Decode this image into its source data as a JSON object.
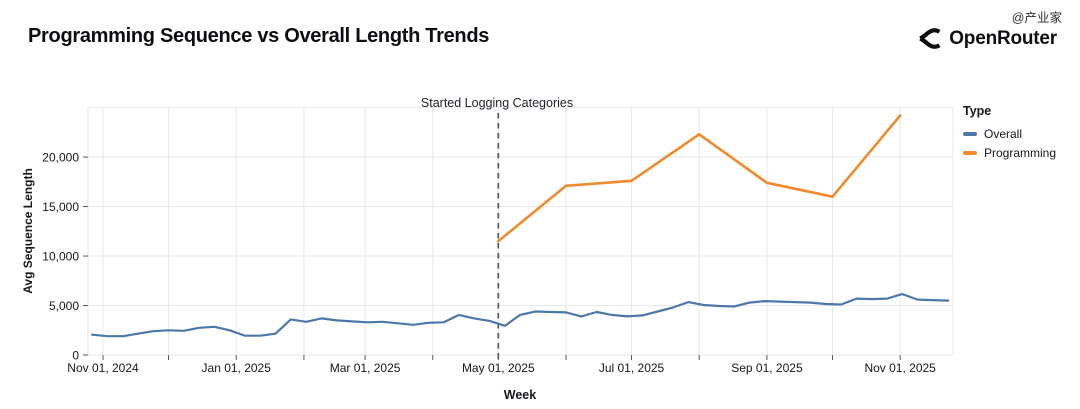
{
  "header": {
    "brand": "OpenRouter",
    "watermark": "@产业家"
  },
  "chart_data": {
    "type": "line",
    "title": "Programming Sequence vs Overall Length Trends",
    "xlabel": "Week",
    "ylabel": "Avg Sequence Length",
    "ylim": [
      0,
      25000
    ],
    "x_range_dates": [
      "2024-10-25",
      "2025-11-25"
    ],
    "grid": true,
    "annotation": {
      "label": "Started Logging Categories",
      "date": "2025-05-01",
      "style": "dashed-vertical-line",
      "color": "#55555e"
    },
    "legend": {
      "title": "Type",
      "position": "right",
      "entries": [
        {
          "name": "Overall",
          "color": "#4c78a8"
        },
        {
          "name": "Programming",
          "color": "#ef8a2e"
        }
      ]
    },
    "x_ticks": [
      {
        "label": "Nov 01, 2024",
        "date": "2024-11-01"
      },
      {
        "label": "Jan 01, 2025",
        "date": "2025-01-01"
      },
      {
        "label": "Mar 01, 2025",
        "date": "2025-03-01"
      },
      {
        "label": "May 01, 2025",
        "date": "2025-05-01"
      },
      {
        "label": "Jul 01, 2025",
        "date": "2025-07-01"
      },
      {
        "label": "Sep 01, 2025",
        "date": "2025-09-01"
      },
      {
        "label": "Nov 01, 2025",
        "date": "2025-11-01"
      }
    ],
    "y_ticks": [
      {
        "label": "0",
        "value": 0
      },
      {
        "label": "5,000",
        "value": 5000
      },
      {
        "label": "10,000",
        "value": 10000
      },
      {
        "label": "15,000",
        "value": 15000
      },
      {
        "label": "20,000",
        "value": 20000
      }
    ],
    "series": [
      {
        "name": "Overall",
        "color": "#4c78a8",
        "points": [
          [
            "2024-10-27",
            2050
          ],
          [
            "2024-11-03",
            1900
          ],
          [
            "2024-11-10",
            1900
          ],
          [
            "2024-11-17",
            2150
          ],
          [
            "2024-11-24",
            2400
          ],
          [
            "2024-12-01",
            2500
          ],
          [
            "2024-12-08",
            2450
          ],
          [
            "2024-12-15",
            2750
          ],
          [
            "2024-12-22",
            2850
          ],
          [
            "2024-12-29",
            2500
          ],
          [
            "2025-01-05",
            1950
          ],
          [
            "2025-01-12",
            1950
          ],
          [
            "2025-01-19",
            2150
          ],
          [
            "2025-01-26",
            3600
          ],
          [
            "2025-02-02",
            3350
          ],
          [
            "2025-02-09",
            3700
          ],
          [
            "2025-02-16",
            3500
          ],
          [
            "2025-02-23",
            3400
          ],
          [
            "2025-03-02",
            3300
          ],
          [
            "2025-03-09",
            3350
          ],
          [
            "2025-03-16",
            3200
          ],
          [
            "2025-03-23",
            3050
          ],
          [
            "2025-03-30",
            3250
          ],
          [
            "2025-04-06",
            3300
          ],
          [
            "2025-04-13",
            4050
          ],
          [
            "2025-04-20",
            3700
          ],
          [
            "2025-04-27",
            3450
          ],
          [
            "2025-05-04",
            2950
          ],
          [
            "2025-05-11",
            4050
          ],
          [
            "2025-05-18",
            4400
          ],
          [
            "2025-05-25",
            4350
          ],
          [
            "2025-06-01",
            4300
          ],
          [
            "2025-06-08",
            3900
          ],
          [
            "2025-06-15",
            4350
          ],
          [
            "2025-06-22",
            4050
          ],
          [
            "2025-06-29",
            3900
          ],
          [
            "2025-07-06",
            4000
          ],
          [
            "2025-07-13",
            4400
          ],
          [
            "2025-07-20",
            4800
          ],
          [
            "2025-07-27",
            5350
          ],
          [
            "2025-08-03",
            5050
          ],
          [
            "2025-08-10",
            4950
          ],
          [
            "2025-08-17",
            4900
          ],
          [
            "2025-08-24",
            5300
          ],
          [
            "2025-08-31",
            5450
          ],
          [
            "2025-09-07",
            5400
          ],
          [
            "2025-09-14",
            5350
          ],
          [
            "2025-09-21",
            5300
          ],
          [
            "2025-09-28",
            5150
          ],
          [
            "2025-10-05",
            5100
          ],
          [
            "2025-10-12",
            5700
          ],
          [
            "2025-10-19",
            5650
          ],
          [
            "2025-10-26",
            5700
          ],
          [
            "2025-11-02",
            6150
          ],
          [
            "2025-11-09",
            5600
          ],
          [
            "2025-11-16",
            5550
          ],
          [
            "2025-11-23",
            5500
          ]
        ]
      },
      {
        "name": "Programming",
        "color": "#ef8a2e",
        "points": [
          [
            "2025-05-01",
            11500
          ],
          [
            "2025-06-01",
            17100
          ],
          [
            "2025-07-01",
            17600
          ],
          [
            "2025-08-01",
            22300
          ],
          [
            "2025-09-01",
            17400
          ],
          [
            "2025-10-01",
            16000
          ],
          [
            "2025-11-01",
            24200
          ]
        ]
      }
    ]
  }
}
